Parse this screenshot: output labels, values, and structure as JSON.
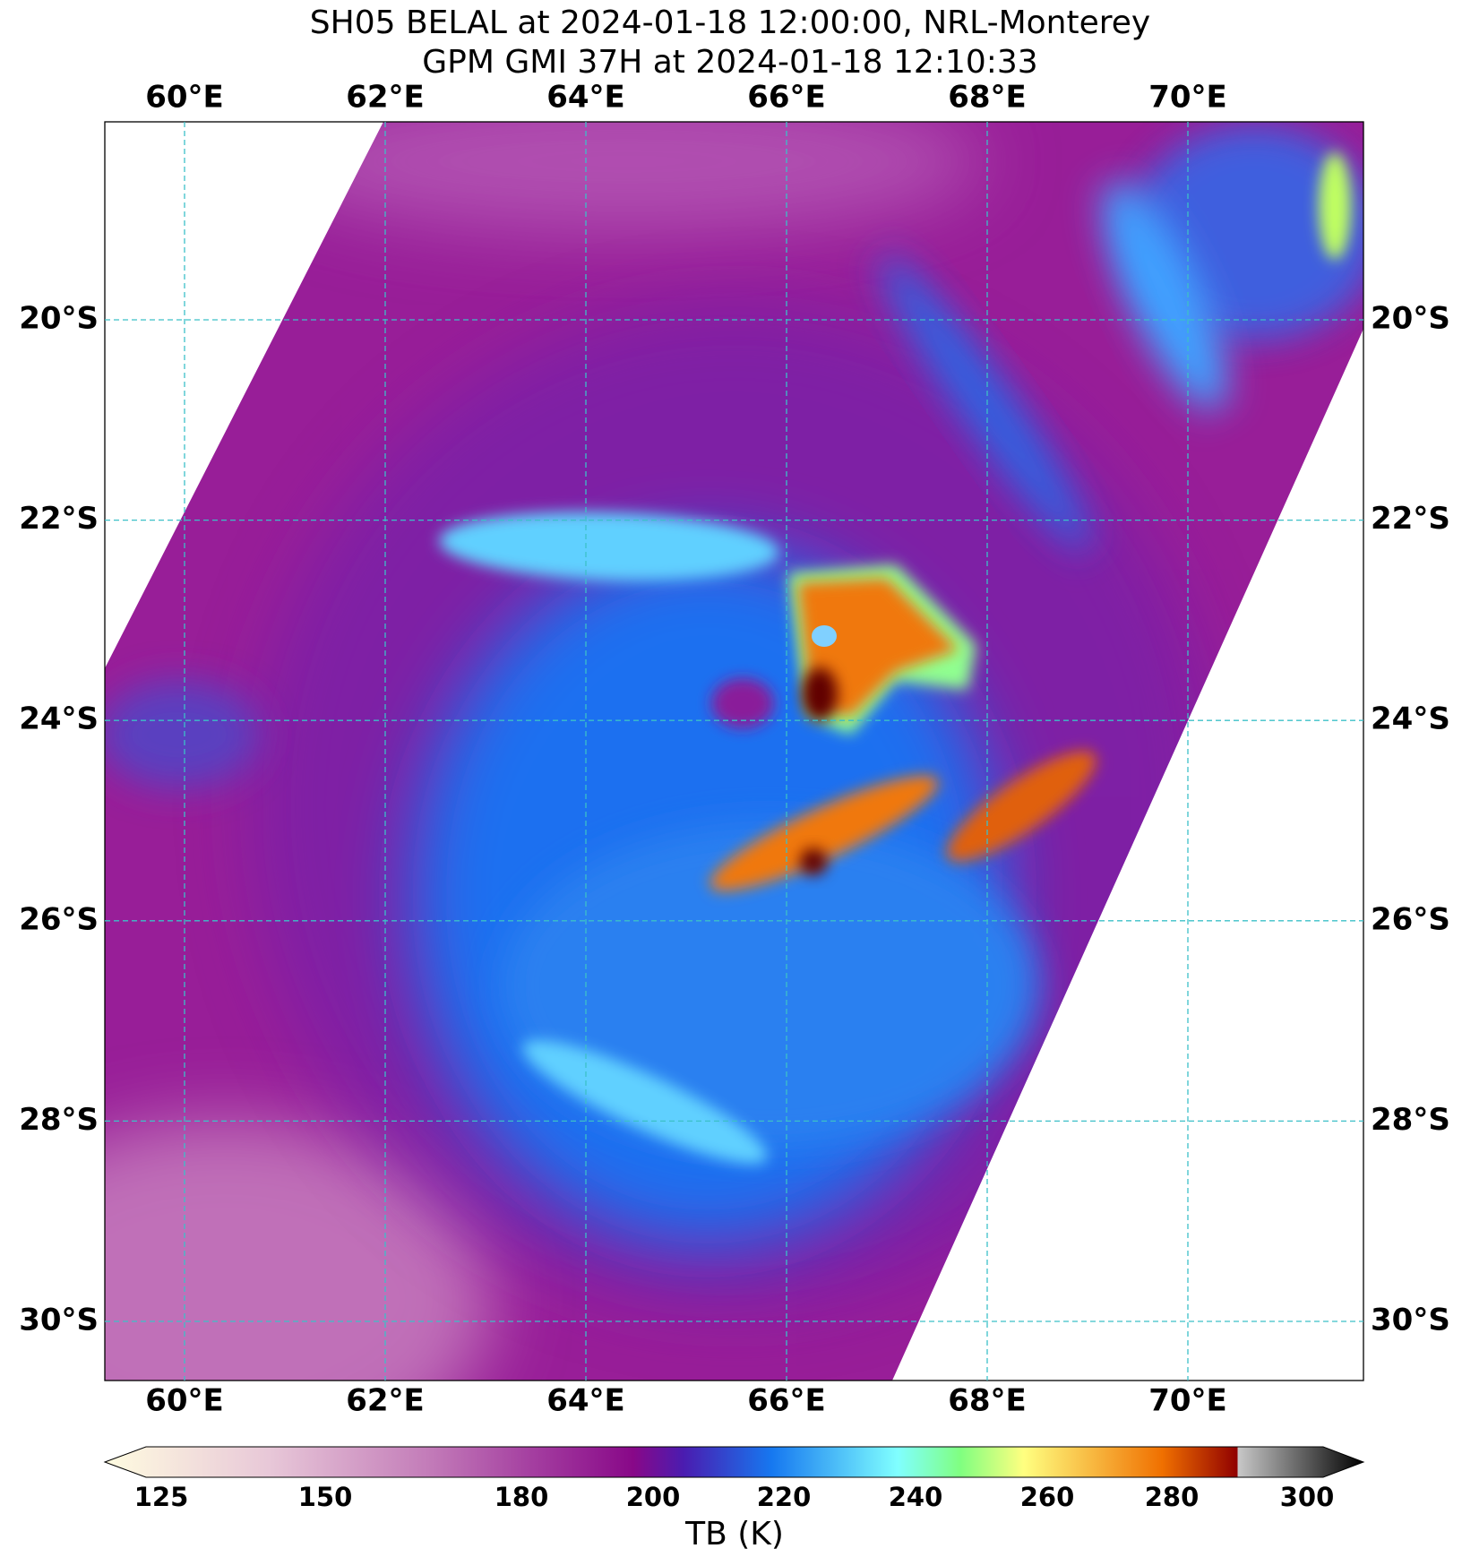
{
  "title": [
    "SH05 BELAL at 2024-01-18 12:00:00, NRL-Monterey",
    "GPM GMI 37H at 2024-01-18 12:10:33"
  ],
  "lon_labels": [
    "60°E",
    "62°E",
    "64°E",
    "66°E",
    "68°E",
    "70°E"
  ],
  "lat_labels": [
    "20°S",
    "22°S",
    "24°S",
    "26°S",
    "28°S",
    "30°S"
  ],
  "colorbar": {
    "ticks": [
      "125",
      "150",
      "180",
      "200",
      "220",
      "240",
      "260",
      "280",
      "300"
    ],
    "label": "TB (K)"
  }
}
